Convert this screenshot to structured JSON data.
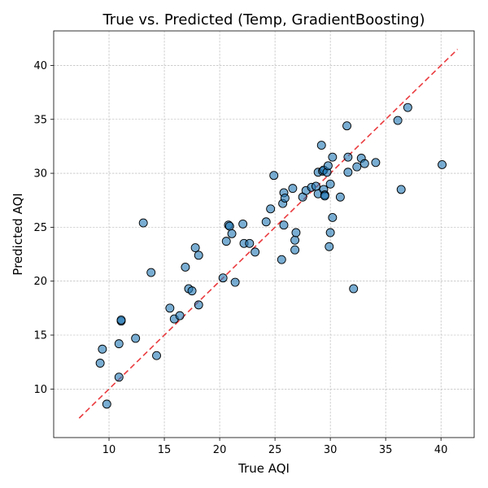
{
  "chart_data": {
    "type": "scatter",
    "title": "True vs. Predicted (Temp, GradientBoosting)",
    "xlabel": "True AQI",
    "ylabel": "Predicted AQI",
    "xlim": [
      5.0,
      43.0
    ],
    "ylim": [
      5.5,
      43.2
    ],
    "xticks": [
      10,
      15,
      20,
      25,
      30,
      35,
      40
    ],
    "yticks": [
      10,
      15,
      20,
      25,
      30,
      35,
      40
    ],
    "grid": true,
    "reference_line": {
      "style": "dashed",
      "color": "#e8262a",
      "x": [
        7.3,
        41.5
      ],
      "y": [
        7.3,
        41.5
      ]
    },
    "point_color": "#1f77b4",
    "points": [
      [
        9.2,
        12.4
      ],
      [
        9.4,
        13.7
      ],
      [
        9.8,
        8.6
      ],
      [
        10.9,
        11.1
      ],
      [
        10.9,
        14.2
      ],
      [
        11.1,
        16.3
      ],
      [
        11.1,
        16.4
      ],
      [
        12.4,
        14.7
      ],
      [
        13.1,
        25.4
      ],
      [
        13.8,
        20.8
      ],
      [
        14.3,
        13.1
      ],
      [
        15.5,
        17.5
      ],
      [
        15.9,
        16.5
      ],
      [
        16.4,
        16.8
      ],
      [
        16.9,
        21.3
      ],
      [
        17.2,
        19.3
      ],
      [
        17.5,
        19.1
      ],
      [
        17.8,
        23.1
      ],
      [
        18.1,
        22.4
      ],
      [
        18.1,
        17.8
      ],
      [
        20.3,
        20.3
      ],
      [
        20.6,
        23.7
      ],
      [
        20.8,
        25.2
      ],
      [
        20.9,
        25.1
      ],
      [
        21.1,
        24.4
      ],
      [
        21.4,
        19.9
      ],
      [
        22.1,
        25.3
      ],
      [
        22.2,
        23.5
      ],
      [
        22.7,
        23.5
      ],
      [
        23.2,
        22.7
      ],
      [
        24.2,
        25.5
      ],
      [
        24.6,
        26.7
      ],
      [
        24.9,
        29.8
      ],
      [
        25.6,
        22.0
      ],
      [
        25.7,
        27.2
      ],
      [
        25.8,
        28.2
      ],
      [
        25.9,
        27.7
      ],
      [
        25.8,
        25.2
      ],
      [
        26.6,
        28.6
      ],
      [
        26.8,
        23.8
      ],
      [
        26.8,
        22.9
      ],
      [
        26.9,
        24.5
      ],
      [
        27.5,
        27.8
      ],
      [
        27.8,
        28.4
      ],
      [
        28.3,
        28.7
      ],
      [
        28.7,
        28.8
      ],
      [
        28.9,
        28.1
      ],
      [
        28.9,
        30.1
      ],
      [
        29.2,
        32.6
      ],
      [
        29.3,
        30.2
      ],
      [
        29.4,
        28.5
      ],
      [
        29.4,
        30.3
      ],
      [
        29.5,
        28.0
      ],
      [
        29.5,
        27.9
      ],
      [
        29.7,
        30.1
      ],
      [
        29.8,
        30.7
      ],
      [
        29.9,
        23.2
      ],
      [
        30.0,
        24.5
      ],
      [
        30.0,
        29.0
      ],
      [
        30.2,
        31.5
      ],
      [
        30.2,
        25.9
      ],
      [
        30.9,
        27.8
      ],
      [
        31.5,
        34.4
      ],
      [
        31.6,
        31.5
      ],
      [
        31.6,
        30.1
      ],
      [
        32.1,
        19.3
      ],
      [
        32.4,
        30.6
      ],
      [
        32.8,
        31.4
      ],
      [
        33.1,
        30.9
      ],
      [
        34.1,
        31.0
      ],
      [
        36.1,
        34.9
      ],
      [
        36.4,
        28.5
      ],
      [
        37.0,
        36.1
      ],
      [
        40.1,
        30.8
      ]
    ]
  }
}
